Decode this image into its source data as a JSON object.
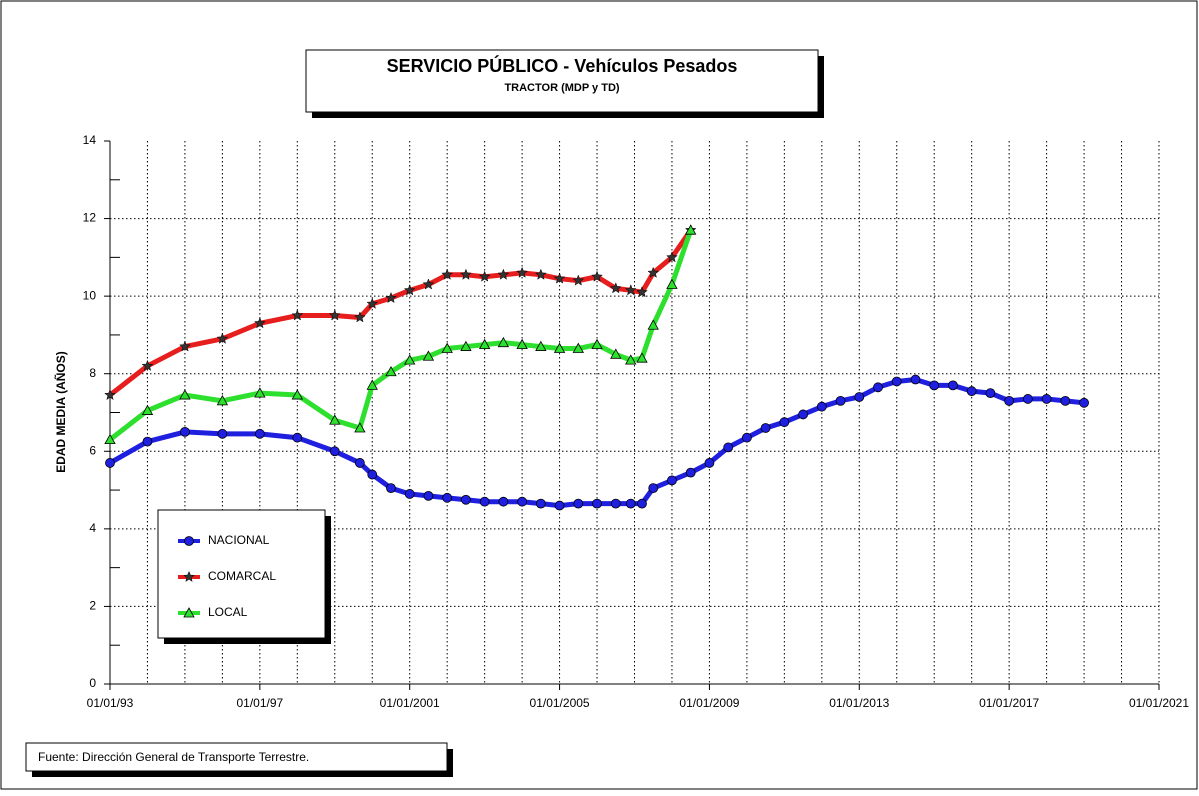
{
  "chart_data": {
    "type": "line",
    "title": "SERVICIO PÚBLICO - Vehículos Pesados",
    "subtitle": "TRACTOR (MDP y TD)",
    "y_label": "EDAD  MEDIA  (AÑOS)",
    "source": "Fuente: Dirección General de Transporte Terrestre.",
    "x": [
      1993,
      1994,
      1995,
      1996,
      1997,
      1998,
      1999,
      1999.67,
      2000,
      2000.5,
      2001,
      2001.5,
      2002,
      2002.5,
      2003,
      2003.5,
      2004,
      2004.5,
      2005,
      2005.5,
      2006,
      2006.5,
      2006.9,
      2007.2,
      2007.5,
      2008,
      2008.5,
      2009,
      2009.5,
      2010,
      2010.5,
      2011,
      2011.5,
      2012,
      2012.5,
      2013,
      2013.5,
      2014,
      2014.5,
      2015,
      2015.5,
      2016,
      2016.5,
      2017,
      2017.5,
      2018,
      2018.5,
      2019
    ],
    "series": [
      {
        "name": "NACIONAL",
        "color": "#1f1fe0",
        "marker": "circle",
        "values": [
          5.7,
          6.25,
          6.5,
          6.45,
          6.45,
          6.35,
          6.0,
          5.7,
          5.4,
          5.05,
          4.9,
          4.85,
          4.8,
          4.75,
          4.7,
          4.7,
          4.7,
          4.65,
          4.6,
          4.65,
          4.65,
          4.65,
          4.65,
          4.65,
          5.05,
          5.25,
          5.45,
          5.7,
          6.1,
          6.35,
          6.6,
          6.75,
          6.95,
          7.15,
          7.3,
          7.4,
          7.65,
          7.8,
          7.85,
          7.7,
          7.7,
          7.55,
          7.5,
          7.3,
          7.35,
          7.35,
          7.3,
          7.25
        ]
      },
      {
        "name": "COMARCAL",
        "color": "#e61e1e",
        "marker": "star",
        "values": [
          7.45,
          8.2,
          8.7,
          8.9,
          9.3,
          9.5,
          9.5,
          9.45,
          9.8,
          9.95,
          10.15,
          10.3,
          10.55,
          10.55,
          10.5,
          10.55,
          10.6,
          10.55,
          10.45,
          10.4,
          10.5,
          10.2,
          10.15,
          10.1,
          10.6,
          11.0,
          11.7,
          null,
          null,
          null,
          null,
          null,
          null,
          null,
          null,
          null,
          null,
          null,
          null,
          null,
          null,
          null,
          null,
          null,
          null,
          null,
          null,
          null
        ]
      },
      {
        "name": "LOCAL",
        "color": "#2ee02e",
        "marker": "triangle",
        "values": [
          6.3,
          7.05,
          7.45,
          7.3,
          7.5,
          7.45,
          6.8,
          6.6,
          7.7,
          8.05,
          8.35,
          8.45,
          8.65,
          8.7,
          8.75,
          8.8,
          8.75,
          8.7,
          8.65,
          8.65,
          8.75,
          8.5,
          8.35,
          8.4,
          9.25,
          10.3,
          11.7,
          null,
          null,
          null,
          null,
          null,
          null,
          null,
          null,
          null,
          null,
          null,
          null,
          null,
          null,
          null,
          null,
          null,
          null,
          null,
          null,
          null
        ]
      }
    ],
    "xlim": [
      1993,
      2021
    ],
    "xticks": [
      {
        "value": 1993,
        "label": "01/01/93"
      },
      {
        "value": 1997,
        "label": "01/01/97"
      },
      {
        "value": 2001,
        "label": "01/01/2001"
      },
      {
        "value": 2005,
        "label": "01/01/2005"
      },
      {
        "value": 2009,
        "label": "01/01/2009"
      },
      {
        "value": 2013,
        "label": "01/01/2013"
      },
      {
        "value": 2017,
        "label": "01/01/2017"
      },
      {
        "value": 2021,
        "label": "01/01/2021"
      }
    ],
    "ylim": [
      0,
      14
    ],
    "yticks": [
      0,
      2,
      4,
      6,
      8,
      10,
      12,
      14
    ],
    "grid": true,
    "legend": "lower left"
  }
}
